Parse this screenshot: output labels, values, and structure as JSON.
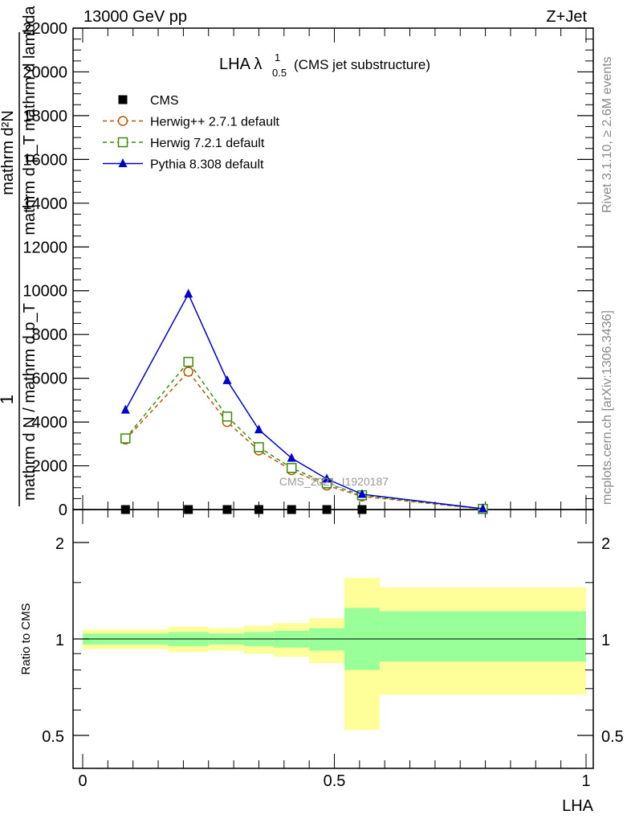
{
  "header": {
    "left": "13000 GeV pp",
    "right": "Z+Jet"
  },
  "side_labels": {
    "rivet": "Rivet 3.1.10, ≥ 2.6M events",
    "mcplots": "mcplots.cern.ch [arXiv:1306.3436]"
  },
  "chart_data": [
    {
      "type": "line",
      "title_main": "LHA λ",
      "title_sup": "1",
      "title_sub": "0.5",
      "title_suffix": "(CMS jet substructure)",
      "ylabel": "1 / mathrm d N / mathrm d p_T mathrm d^2N / mathrm d p_T mathrm d lambda",
      "ylabel_top": "mathrm d²N",
      "ylabel_top2": "mathrm d p_T mathrm d lambda",
      "ylabel_one": "1",
      "ylabel_bottom": "mathrm d N / mathrm d p_T",
      "watermark": "CMS_2021_I1920187",
      "xlim": [
        0,
        1
      ],
      "ylim": [
        0,
        22000
      ],
      "yticks": [
        0,
        2000,
        4000,
        6000,
        8000,
        10000,
        12000,
        14000,
        16000,
        18000,
        20000,
        22000
      ],
      "ytick_labels": [
        "0",
        "2000",
        "4000",
        "6000",
        "8000",
        "10000",
        "12000",
        "14000",
        "16000",
        "18000",
        "20000",
        "22000"
      ],
      "legend_position": "top-left",
      "series": [
        {
          "name": "CMS",
          "marker": "square-filled",
          "color": "#000000",
          "x": [
            0.085,
            0.21,
            0.287,
            0.35,
            0.415,
            0.485,
            0.555,
            0.795
          ],
          "y": [
            0,
            0,
            0,
            0,
            0,
            0,
            0,
            0
          ]
        },
        {
          "name": "Herwig++ 2.7.1 default",
          "marker": "circle-open",
          "dash": "dashed",
          "color": "#b35900",
          "x": [
            0.085,
            0.21,
            0.287,
            0.35,
            0.415,
            0.485,
            0.555,
            0.795
          ],
          "y": [
            3200,
            6300,
            4000,
            2700,
            1800,
            1100,
            600,
            30
          ]
        },
        {
          "name": "Herwig 7.2.1 default",
          "marker": "square-open",
          "dash": "dashed",
          "color": "#3c8c0a",
          "x": [
            0.085,
            0.21,
            0.287,
            0.35,
            0.415,
            0.485,
            0.555,
            0.795
          ],
          "y": [
            3250,
            6750,
            4250,
            2850,
            1900,
            1200,
            650,
            30
          ]
        },
        {
          "name": "Pythia 8.308 default",
          "marker": "triangle-filled",
          "dash": "solid",
          "color": "#0000cc",
          "x": [
            0.085,
            0.21,
            0.287,
            0.35,
            0.415,
            0.485,
            0.555,
            0.795
          ],
          "y": [
            4550,
            9850,
            5900,
            3650,
            2350,
            1400,
            700,
            35
          ]
        }
      ]
    },
    {
      "type": "area",
      "ylabel": "Ratio to CMS",
      "xlabel": "LHA",
      "xlim": [
        0,
        1
      ],
      "ylim": [
        0.42,
        2.35
      ],
      "xticks": [
        0,
        0.5,
        1
      ],
      "xtick_labels": [
        "0",
        "0.5",
        "1"
      ],
      "yticks": [
        0.5,
        1,
        2
      ],
      "ytick_labels": [
        "0.5",
        "1",
        "2"
      ],
      "reference_line": 1,
      "bins": [
        {
          "x0": 0.0,
          "x1": 0.17,
          "inner": [
            0.96,
            1.04
          ],
          "outer": [
            0.93,
            1.07
          ]
        },
        {
          "x0": 0.17,
          "x1": 0.25,
          "inner": [
            0.95,
            1.05
          ],
          "outer": [
            0.91,
            1.09
          ]
        },
        {
          "x0": 0.25,
          "x1": 0.32,
          "inner": [
            0.96,
            1.04
          ],
          "outer": [
            0.92,
            1.08
          ]
        },
        {
          "x0": 0.32,
          "x1": 0.38,
          "inner": [
            0.95,
            1.05
          ],
          "outer": [
            0.9,
            1.1
          ]
        },
        {
          "x0": 0.38,
          "x1": 0.45,
          "inner": [
            0.94,
            1.06
          ],
          "outer": [
            0.88,
            1.12
          ]
        },
        {
          "x0": 0.45,
          "x1": 0.52,
          "inner": [
            0.92,
            1.08
          ],
          "outer": [
            0.84,
            1.16
          ]
        },
        {
          "x0": 0.52,
          "x1": 0.59,
          "inner": [
            0.8,
            1.25
          ],
          "outer": [
            0.52,
            1.55
          ]
        },
        {
          "x0": 0.59,
          "x1": 1.0,
          "inner": [
            0.85,
            1.22
          ],
          "outer": [
            0.67,
            1.45
          ]
        }
      ]
    }
  ],
  "colors": {
    "band_inner": "#99ff99",
    "band_outer": "#ffff99"
  }
}
